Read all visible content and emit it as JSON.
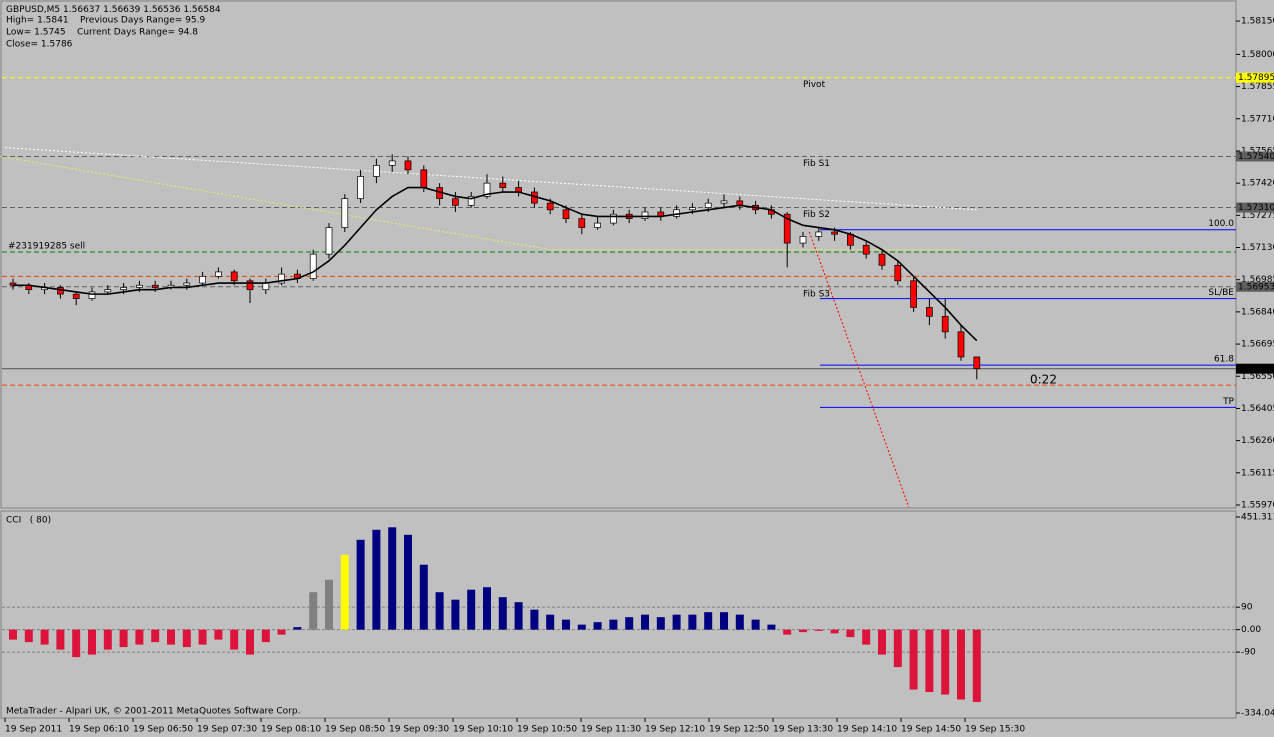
{
  "header": {
    "symbol": "GBPUSD,M5",
    "lines": [
      "High= 1.5841    Previous Days Range= 95.9",
      "Low= 1.5745    Current Days Range= 94.8",
      "Close= 1.5786"
    ]
  },
  "countdown": "0:22",
  "footer": "MetaTrader - Alpari UK, © 2001-2011 MetaQuotes Software Corp.",
  "xlabels": [
    "19 Sep 2011",
    "19 Sep 06:10",
    "19 Sep 06:50",
    "19 Sep 07:30",
    "19 Sep 08:10",
    "19 Sep 08:50",
    "19 Sep 09:30",
    "19 Sep 10:10",
    "19 Sep 10:50",
    "19 Sep 11:30",
    "19 Sep 12:10",
    "19 Sep 12:50",
    "19 Sep 13:30",
    "19 Sep 14:10",
    "19 Sep 14:50",
    "19 Sep 15:30"
  ],
  "chart_data": [
    {
      "type": "candlestick",
      "up_color": "#ffffff",
      "down_color": "#ff0000",
      "ma_color": "#000000",
      "ylim": [
        1.55961,
        1.58236
      ],
      "yticks": [
        {
          "value": 1.5815,
          "label": "1.58150"
        },
        {
          "value": 1.58,
          "label": "1.58000"
        },
        {
          "value": 1.57855,
          "label": "1.57855"
        },
        {
          "value": 1.5771,
          "label": "1.57710"
        },
        {
          "value": 1.57565,
          "label": "1.57565"
        },
        {
          "value": 1.5742,
          "label": "1.57420"
        },
        {
          "value": 1.57275,
          "label": "1.57275"
        },
        {
          "value": 1.5713,
          "label": "1.57130"
        },
        {
          "value": 1.56985,
          "label": "1.56985"
        },
        {
          "value": 1.5684,
          "label": "1.56840"
        },
        {
          "value": 1.56695,
          "label": "1.56695"
        },
        {
          "value": 1.5655,
          "label": "1.56550"
        },
        {
          "value": 1.56405,
          "label": "1.56405"
        },
        {
          "value": 1.5626,
          "label": "1.56260"
        },
        {
          "value": 1.56115,
          "label": "1.56115"
        },
        {
          "value": 1.5597,
          "label": "1.55970"
        }
      ],
      "candles": [
        [
          1.5697,
          1.5699,
          1.5694,
          1.5696
        ],
        [
          1.5696,
          1.5697,
          1.5692,
          1.5694
        ],
        [
          1.5694,
          1.5697,
          1.5692,
          1.5695
        ],
        [
          1.5695,
          1.5696,
          1.569,
          1.5692
        ],
        [
          1.5692,
          1.5693,
          1.5687,
          1.569
        ],
        [
          1.569,
          1.5695,
          1.5689,
          1.5693
        ],
        [
          1.5693,
          1.5696,
          1.5692,
          1.5694
        ],
        [
          1.5694,
          1.5697,
          1.5692,
          1.5695
        ],
        [
          1.5695,
          1.5698,
          1.5693,
          1.5696
        ],
        [
          1.5696,
          1.5698,
          1.5693,
          1.5695
        ],
        [
          1.5695,
          1.5698,
          1.5694,
          1.5696
        ],
        [
          1.5696,
          1.5699,
          1.5694,
          1.5697
        ],
        [
          1.5697,
          1.5702,
          1.5696,
          1.57
        ],
        [
          1.57,
          1.5704,
          1.5699,
          1.5702
        ],
        [
          1.5702,
          1.5703,
          1.5696,
          1.5698
        ],
        [
          1.5698,
          1.5699,
          1.5688,
          1.5694
        ],
        [
          1.5694,
          1.5699,
          1.5692,
          1.5697
        ],
        [
          1.5697,
          1.5704,
          1.5696,
          1.5701
        ],
        [
          1.5701,
          1.5703,
          1.5697,
          1.5699
        ],
        [
          1.5699,
          1.5712,
          1.5698,
          1.571
        ],
        [
          1.571,
          1.5724,
          1.5708,
          1.5722
        ],
        [
          1.5722,
          1.5737,
          1.572,
          1.5735
        ],
        [
          1.5735,
          1.5748,
          1.5733,
          1.5745
        ],
        [
          1.5745,
          1.5753,
          1.5742,
          1.575
        ],
        [
          1.575,
          1.5755,
          1.5747,
          1.5752
        ],
        [
          1.5752,
          1.5754,
          1.5746,
          1.5748
        ],
        [
          1.5748,
          1.575,
          1.5738,
          1.574
        ],
        [
          1.574,
          1.5742,
          1.5732,
          1.5735
        ],
        [
          1.5735,
          1.5738,
          1.5729,
          1.5732
        ],
        [
          1.5732,
          1.5738,
          1.5731,
          1.5736
        ],
        [
          1.5736,
          1.5746,
          1.5735,
          1.5742
        ],
        [
          1.5742,
          1.5745,
          1.5738,
          1.574
        ],
        [
          1.574,
          1.5743,
          1.5736,
          1.5738
        ],
        [
          1.5738,
          1.574,
          1.5731,
          1.5733
        ],
        [
          1.5733,
          1.5735,
          1.5728,
          1.573
        ],
        [
          1.573,
          1.5732,
          1.5724,
          1.5726
        ],
        [
          1.5726,
          1.5728,
          1.5719,
          1.5722
        ],
        [
          1.5722,
          1.5727,
          1.5721,
          1.5724
        ],
        [
          1.5724,
          1.573,
          1.5723,
          1.5728
        ],
        [
          1.5728,
          1.573,
          1.5724,
          1.5726
        ],
        [
          1.5726,
          1.5731,
          1.5725,
          1.5729
        ],
        [
          1.5729,
          1.5731,
          1.5725,
          1.5727
        ],
        [
          1.5727,
          1.5732,
          1.5726,
          1.573
        ],
        [
          1.573,
          1.5733,
          1.5728,
          1.5731
        ],
        [
          1.5731,
          1.5735,
          1.5729,
          1.5733
        ],
        [
          1.5733,
          1.5737,
          1.5731,
          1.5734
        ],
        [
          1.5734,
          1.5736,
          1.573,
          1.5732
        ],
        [
          1.5732,
          1.5734,
          1.5728,
          1.573
        ],
        [
          1.573,
          1.5732,
          1.5726,
          1.5728
        ],
        [
          1.5728,
          1.5729,
          1.5704,
          1.5715
        ],
        [
          1.5715,
          1.572,
          1.5713,
          1.5718
        ],
        [
          1.5718,
          1.5722,
          1.5716,
          1.572
        ],
        [
          1.572,
          1.5722,
          1.5716,
          1.5719
        ],
        [
          1.5719,
          1.572,
          1.5712,
          1.5714
        ],
        [
          1.5714,
          1.5716,
          1.5708,
          1.571
        ],
        [
          1.571,
          1.5712,
          1.5703,
          1.5705
        ],
        [
          1.5705,
          1.5707,
          1.5696,
          1.5698
        ],
        [
          1.5698,
          1.57,
          1.5684,
          1.5686
        ],
        [
          1.5686,
          1.569,
          1.5678,
          1.5682
        ],
        [
          1.5682,
          1.569,
          1.5672,
          1.5675
        ],
        [
          1.5675,
          1.5678,
          1.5662,
          1.56637
        ],
        [
          1.56637,
          1.56639,
          1.56536,
          1.56584
        ]
      ],
      "ma": [
        1.5696,
        1.5696,
        1.5695,
        1.5694,
        1.5693,
        1.5692,
        1.5692,
        1.5693,
        1.5694,
        1.5694,
        1.5695,
        1.5695,
        1.5696,
        1.5697,
        1.5697,
        1.5697,
        1.5697,
        1.5698,
        1.5699,
        1.5702,
        1.5707,
        1.5714,
        1.5722,
        1.573,
        1.5736,
        1.574,
        1.574,
        1.5738,
        1.5736,
        1.5735,
        1.5737,
        1.5738,
        1.5738,
        1.5736,
        1.5734,
        1.5731,
        1.5728,
        1.5727,
        1.5727,
        1.5727,
        1.5727,
        1.5727,
        1.5728,
        1.5729,
        1.573,
        1.5731,
        1.5732,
        1.5731,
        1.573,
        1.5726,
        1.5723,
        1.5722,
        1.5721,
        1.5719,
        1.5716,
        1.5712,
        1.5707,
        1.57,
        1.5693,
        1.5686,
        1.5678,
        1.5671
      ],
      "lines": [
        {
          "color": "#ffffff",
          "points": [
            [
              -0.5,
              1.5758
            ],
            [
              61,
              1.573
            ]
          ]
        },
        {
          "color": "#e8e860",
          "points": [
            [
              -0.8,
              1.5754
            ],
            [
              34,
              1.5712
            ],
            [
              60,
              1.5712
            ]
          ]
        },
        {
          "color": "#ff0000",
          "points": [
            [
              50.4,
              1.572
            ],
            [
              56.7,
              1.5596
            ]
          ]
        }
      ],
      "levels": [
        {
          "name": "Pivot",
          "value": 1.57895,
          "label": "1.57895",
          "color": "#ffff00",
          "name_color": "#ffffff"
        },
        {
          "name": "Fib S1",
          "value": 1.5754,
          "label": "1.57540",
          "color": "#606060",
          "name_color": "#808080"
        },
        {
          "name": "Fib S2",
          "value": 1.5731,
          "label": "1.57310",
          "color": "#606060",
          "name_color": "#808080"
        },
        {
          "name": "Fib S3",
          "value": 1.56953,
          "label": "1.56953",
          "color": "#606060",
          "name_color": "#808080"
        },
        {
          "name": "#231919285 sell",
          "value": 1.5711,
          "color": "#008000",
          "name_color": "#000000"
        },
        {
          "value": 1.57,
          "color": "#ff4500"
        },
        {
          "value": 1.5651,
          "color": "#ff4500"
        }
      ],
      "fib_color": "#0000ff",
      "fib_levels": [
        {
          "name": "100.0",
          "value": 1.5721
        },
        {
          "name": "SL/BE",
          "value": 1.569
        },
        {
          "name": "61.8",
          "value": 1.566
        },
        {
          "name": "TP",
          "value": 1.5641
        }
      ]
    },
    {
      "type": "bar",
      "title": "CCI   ( 80)",
      "color_pos": "#000080",
      "color_neg": "#dc143c",
      "special": [
        {
          "index": 19,
          "color": "#808080"
        },
        {
          "index": 20,
          "color": "#808080"
        },
        {
          "index": 21,
          "color": "#ffff00"
        }
      ],
      "ylim": [
        -334.047,
        451.311
      ],
      "yticks": [
        451.311,
        90,
        {
          "value": 0,
          "label": "0.00"
        },
        -90,
        -334.047
      ],
      "values": [
        -40,
        -50,
        -60,
        -80,
        -110,
        -100,
        -80,
        -70,
        -60,
        -50,
        -60,
        -70,
        -60,
        -40,
        -80,
        -100,
        -50,
        -20,
        10,
        150,
        200,
        300,
        360,
        400,
        410,
        380,
        260,
        150,
        120,
        160,
        170,
        130,
        110,
        80,
        60,
        40,
        20,
        30,
        40,
        50,
        60,
        50,
        60,
        60,
        70,
        70,
        60,
        40,
        20,
        -20,
        -10,
        -5,
        -15,
        -30,
        -60,
        -100,
        -150,
        -240,
        -250,
        -260,
        -280,
        -290
      ]
    }
  ]
}
